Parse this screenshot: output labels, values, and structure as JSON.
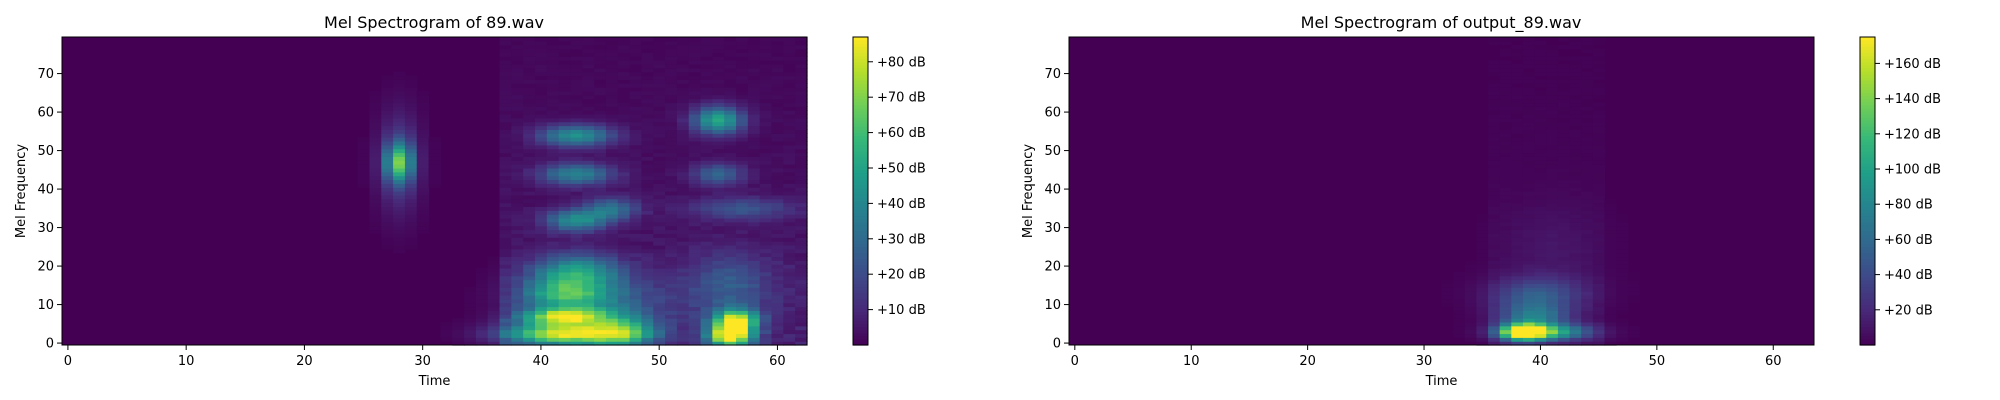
{
  "figure": {
    "colormap": "viridis",
    "colormap_stops": [
      "#440154",
      "#482878",
      "#3e4989",
      "#31688e",
      "#26828e",
      "#1f9e89",
      "#35b779",
      "#6ece58",
      "#b5de2b",
      "#fde725"
    ]
  },
  "chart_data": [
    {
      "type": "heatmap",
      "title": "Mel Spectrogram of 89.wav",
      "xlabel": "Time",
      "ylabel": "Mel Frequency",
      "x_ticks": [
        "0",
        "10",
        "20",
        "30",
        "40",
        "50",
        "60"
      ],
      "y_ticks": [
        "0",
        "10",
        "20",
        "30",
        "40",
        "50",
        "60",
        "70"
      ],
      "xlim": [
        -0.5,
        62.5
      ],
      "ylim": [
        -0.5,
        79.5
      ],
      "n_frames": 63,
      "n_mels": 80,
      "colorbar": {
        "range": [
          0,
          87
        ],
        "ticks": [
          "+10 dB",
          "+20 dB",
          "+30 dB",
          "+40 dB",
          "+50 dB",
          "+60 dB",
          "+70 dB",
          "+80 dB"
        ]
      },
      "energy_blobs": [
        {
          "t": 28,
          "f": 47,
          "dt": 0.8,
          "df": 3.5,
          "value": 52
        },
        {
          "t": 28,
          "f": 47,
          "dt": 1.2,
          "df": 9,
          "value": 18
        },
        {
          "t": 42,
          "f": 2.5,
          "dt": 3.5,
          "df": 2,
          "value": 72
        },
        {
          "t": 42,
          "f": 7,
          "dt": 2.5,
          "df": 1.5,
          "value": 62
        },
        {
          "t": 42,
          "f": 13,
          "dt": 2.5,
          "df": 3,
          "value": 40
        },
        {
          "t": 43,
          "f": 19,
          "dt": 2.5,
          "df": 3,
          "value": 38
        },
        {
          "t": 43,
          "f": 32,
          "dt": 1.8,
          "df": 2,
          "value": 40
        },
        {
          "t": 43,
          "f": 44,
          "dt": 2.2,
          "df": 2,
          "value": 36
        },
        {
          "t": 43,
          "f": 54,
          "dt": 2.2,
          "df": 2,
          "value": 42
        },
        {
          "t": 47,
          "f": 3,
          "dt": 2,
          "df": 3,
          "value": 42
        },
        {
          "t": 46,
          "f": 35,
          "dt": 1.5,
          "df": 2,
          "value": 30
        },
        {
          "t": 45,
          "f": 11,
          "dt": 4,
          "df": 5,
          "value": 22
        },
        {
          "t": 56,
          "f": 2,
          "dt": 1.3,
          "df": 2,
          "value": 86
        },
        {
          "t": 56.5,
          "f": 6,
          "dt": 1.3,
          "df": 2,
          "value": 72
        },
        {
          "t": 55,
          "f": 58,
          "dt": 1.5,
          "df": 2.5,
          "value": 50
        },
        {
          "t": 55,
          "f": 44,
          "dt": 1.5,
          "df": 2,
          "value": 26
        },
        {
          "t": 57,
          "f": 35,
          "dt": 3,
          "df": 2,
          "value": 20
        },
        {
          "t": 56,
          "f": 15,
          "dt": 2.5,
          "df": 6,
          "value": 20
        }
      ],
      "background_band": {
        "t_start": 37,
        "t_end": 62,
        "value": 12
      }
    },
    {
      "type": "heatmap",
      "title": "Mel Spectrogram of output_89.wav",
      "xlabel": "Time",
      "ylabel": "Mel Frequency",
      "x_ticks": [
        "0",
        "10",
        "20",
        "30",
        "40",
        "50",
        "60"
      ],
      "y_ticks": [
        "0",
        "10",
        "20",
        "30",
        "40",
        "50",
        "60",
        "70"
      ],
      "xlim": [
        -0.5,
        63.5
      ],
      "ylim": [
        -0.5,
        79.5
      ],
      "n_frames": 64,
      "n_mels": 80,
      "colorbar": {
        "range": [
          0,
          175
        ],
        "ticks": [
          "+20 dB",
          "+40 dB",
          "+60 dB",
          "+80 dB",
          "+100 dB",
          "+120 dB",
          "+140 dB",
          "+160 dB"
        ]
      },
      "energy_blobs": [
        {
          "t": 38.5,
          "f": 3,
          "dt": 1.3,
          "df": 1.5,
          "value": 170
        },
        {
          "t": 40.5,
          "f": 3,
          "dt": 2.5,
          "df": 1.5,
          "value": 110
        },
        {
          "t": 39.5,
          "f": 7,
          "dt": 2,
          "df": 2,
          "value": 55
        },
        {
          "t": 39.5,
          "f": 11,
          "dt": 2.5,
          "df": 3,
          "value": 35
        },
        {
          "t": 40,
          "f": 14,
          "dt": 3,
          "df": 3,
          "value": 22
        },
        {
          "t": 41,
          "f": 25,
          "dt": 3,
          "df": 8,
          "value": 8
        }
      ],
      "background_band": {
        "t_start": 36,
        "t_end": 45,
        "value": 6
      }
    }
  ]
}
